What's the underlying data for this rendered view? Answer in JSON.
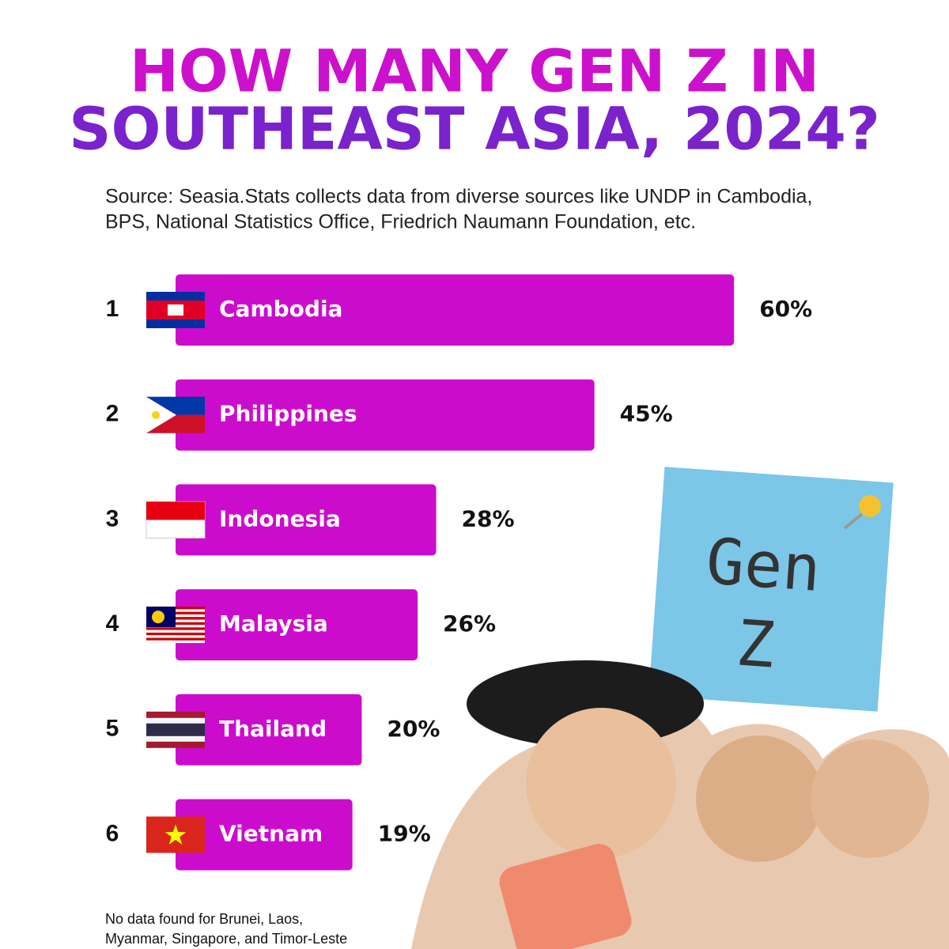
{
  "chart_data": {
    "type": "bar",
    "title_lines": [
      "HOW MANY GEN Z IN",
      "SOUTHEAST ASIA, 2024?"
    ],
    "source_lines": [
      "Source: Seasia.Stats collects data from diverse sources like UNDP in Cambodia,",
      "BPS, National Statistics Office, Friedrich Naumann Foundation, etc."
    ],
    "ranks": [
      1,
      2,
      3,
      4,
      5,
      6
    ],
    "categories": [
      "Cambodia",
      "Philippines",
      "Indonesia",
      "Malaysia",
      "Thailand",
      "Vietnam"
    ],
    "values": [
      60,
      45,
      28,
      26,
      20,
      19
    ],
    "value_labels": [
      "60%",
      "45%",
      "28%",
      "26%",
      "20%",
      "19%"
    ],
    "color": "#cc0ccc",
    "note_text": [
      "Gen",
      "Z"
    ],
    "footnote_lines": [
      "No data found for Brunei, Laos,",
      "Myanmar, Singapore, and Timor-Leste"
    ]
  }
}
